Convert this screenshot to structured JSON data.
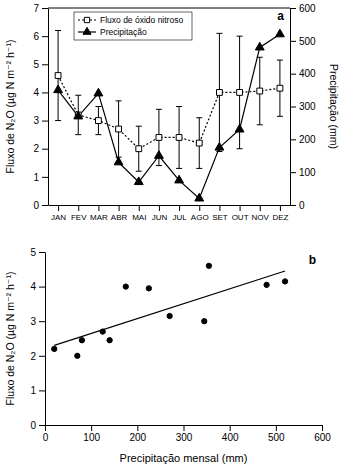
{
  "chart_data": [
    {
      "type": "line",
      "title": "a",
      "categories": [
        "JAN",
        "FEV",
        "MAR",
        "ABR",
        "MAI",
        "JUN",
        "JUL",
        "AGO",
        "SET",
        "OUT",
        "NOV",
        "DEZ"
      ],
      "series": [
        {
          "name": "Fluxo de óxido nitroso",
          "color": "#000000",
          "marker": "square-open",
          "line_style": "dotted",
          "values": [
            4.6,
            3.2,
            3.0,
            2.7,
            2.0,
            2.4,
            2.4,
            2.2,
            4.0,
            4.0,
            4.05,
            4.15
          ],
          "errors": [
            1.6,
            0.7,
            0.5,
            1.0,
            0.8,
            1.0,
            1.1,
            0.9,
            2.1,
            2.0,
            1.2,
            1.0
          ]
        },
        {
          "name": "Precipitação",
          "color": "#000000",
          "marker": "triangle",
          "line_style": "solid",
          "axis": "y2",
          "values": [
            350,
            270,
            340,
            130,
            70,
            150,
            75,
            20,
            175,
            230,
            480,
            520
          ]
        }
      ],
      "y_label": "Fluxo de N₂O (µg N m⁻² h⁻¹)",
      "y2_label": "Precipitação (mm)",
      "ylim": [
        0,
        7
      ],
      "yticks": [
        0,
        1,
        2,
        3,
        4,
        5,
        6,
        7
      ],
      "y2lim": [
        0,
        600
      ],
      "y2ticks": [
        0,
        100,
        200,
        300,
        400,
        500,
        600
      ],
      "legend": "upper left"
    },
    {
      "type": "scatter",
      "title": "b",
      "series": [
        {
          "type": "scatter",
          "color": "#000000",
          "marker": "circle",
          "x": [
            20,
            70,
            80,
            125,
            140,
            175,
            225,
            270,
            345,
            355,
            480,
            520
          ],
          "values": [
            2.2,
            2.0,
            2.45,
            2.7,
            2.45,
            4.0,
            3.95,
            3.15,
            3.0,
            4.6,
            4.05,
            4.15
          ]
        },
        {
          "type": "line",
          "color": "#000000",
          "line_style": "solid",
          "x": [
            20,
            520
          ],
          "values": [
            2.3,
            4.45
          ]
        }
      ],
      "x_label": "Precipitação mensal (mm)",
      "y_label": "Fluxo de N₂O (µg N m⁻² h⁻¹)",
      "xlim": [
        0,
        600
      ],
      "xticks": [
        0,
        100,
        200,
        300,
        400,
        500,
        600
      ],
      "ylim": [
        0,
        5
      ],
      "yticks": [
        0,
        1,
        2,
        3,
        4,
        5
      ]
    }
  ]
}
